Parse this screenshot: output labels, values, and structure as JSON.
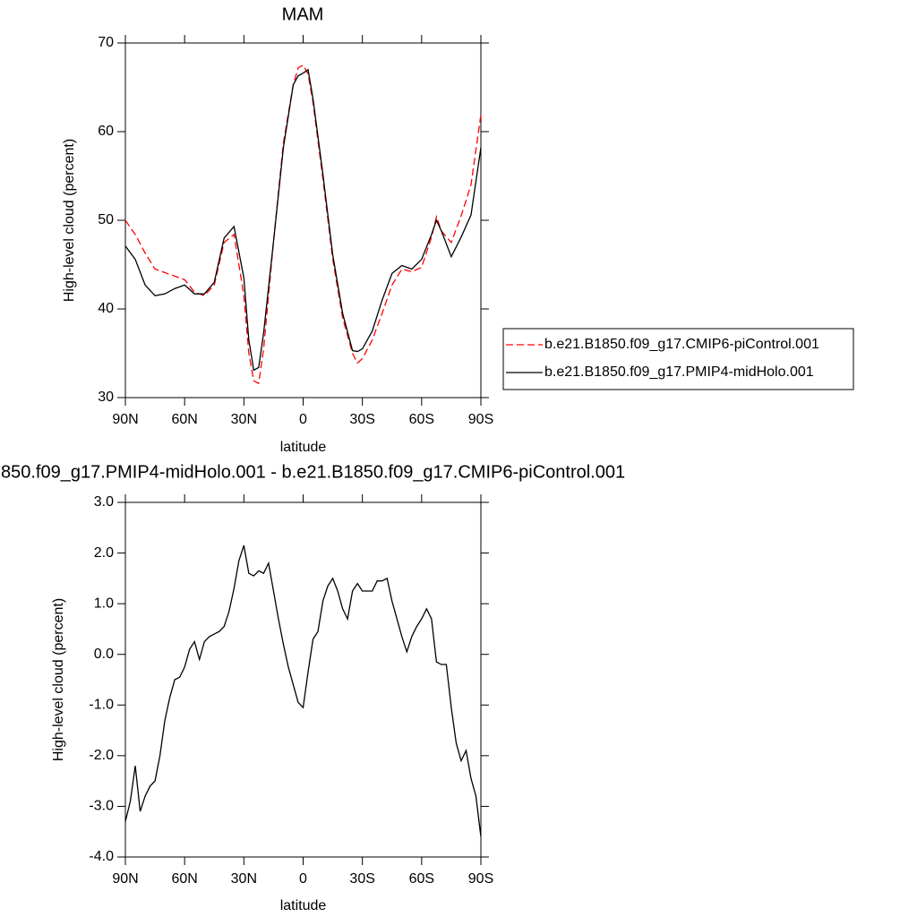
{
  "chart_data": [
    {
      "type": "line",
      "title": "MAM",
      "xlabel": "latitude",
      "ylabel": "High-level cloud (percent)",
      "x": [
        90,
        85,
        80,
        75,
        70,
        65,
        60,
        55,
        50,
        45,
        40,
        35,
        30,
        27.5,
        25,
        22.5,
        20,
        15,
        10,
        5,
        2.5,
        0,
        -2.5,
        -5,
        -10,
        -15,
        -20,
        -25,
        -27.5,
        -30,
        -35,
        -40,
        -45,
        -50,
        -55,
        -60,
        -65,
        -67.5,
        -70,
        -75,
        -80,
        -85,
        -90
      ],
      "xlim": [
        90,
        -90
      ],
      "xticks": [
        {
          "value": 90,
          "label": "90N"
        },
        {
          "value": 60,
          "label": "60N"
        },
        {
          "value": 30,
          "label": "30N"
        },
        0,
        {
          "value": -30,
          "label": "30S"
        },
        {
          "value": -60,
          "label": "60S"
        },
        {
          "value": -90,
          "label": "90S"
        }
      ],
      "ylim": [
        30,
        70
      ],
      "yticks": [
        30,
        40,
        50,
        60,
        70
      ],
      "legend": "right",
      "series": [
        {
          "name": "b.e21.B1850.f09_g17.CMIP6-piControl.001",
          "color": "#ff0000",
          "style": "dashed",
          "values": [
            50.0,
            48.4,
            46.3,
            44.5,
            44.1,
            43.7,
            43.3,
            41.9,
            41.5,
            42.7,
            47.5,
            48.4,
            41.5,
            35.0,
            31.9,
            31.6,
            35.5,
            47.6,
            58.7,
            65.3,
            67.2,
            67.5,
            66.5,
            63.3,
            54.7,
            45.6,
            39.0,
            35.0,
            33.9,
            34.4,
            36.5,
            39.5,
            42.7,
            44.5,
            44.2,
            44.7,
            48.1,
            50.4,
            48.8,
            47.5,
            50.5,
            54.0,
            61.9
          ]
        },
        {
          "name": "b.e21.B1850.f09_g17.PMIP4-midHolo.001",
          "color": "#000000",
          "style": "solid",
          "values": [
            47.1,
            45.6,
            42.7,
            41.5,
            41.7,
            42.3,
            42.7,
            41.7,
            41.7,
            43.0,
            48.0,
            49.3,
            43.5,
            36.5,
            33.1,
            33.4,
            37.3,
            47.6,
            58.2,
            65.3,
            66.3,
            66.6,
            67.0,
            63.7,
            55.2,
            46.1,
            39.5,
            35.3,
            35.2,
            35.5,
            37.5,
            41.0,
            44.0,
            44.9,
            44.5,
            45.6,
            48.4,
            50.0,
            48.8,
            45.9,
            48.1,
            50.6,
            58.2
          ]
        }
      ]
    },
    {
      "type": "line",
      "title": "850.f09_g17.PMIP4-midHolo.001 - b.e21.B1850.f09_g17.CMIP6-piControl.001",
      "xlabel": "latitude",
      "ylabel": "High-level cloud (percent)",
      "x": [
        90,
        87.5,
        85,
        82.5,
        80,
        77.5,
        75,
        72.5,
        70,
        67.5,
        65,
        62.5,
        60,
        57.5,
        55,
        52.5,
        50,
        47.5,
        45,
        42.5,
        40,
        37.5,
        35,
        32.5,
        30,
        27.5,
        25,
        22.5,
        20,
        17.5,
        15,
        12.5,
        10,
        7.5,
        5,
        2.5,
        0,
        -2.5,
        -5,
        -7.5,
        -10,
        -12.5,
        -15,
        -17.5,
        -20,
        -22.5,
        -25,
        -27.5,
        -30,
        -32.5,
        -35,
        -37.5,
        -40,
        -42.5,
        -45,
        -47.5,
        -50,
        -52.5,
        -55,
        -57.5,
        -60,
        -62.5,
        -65,
        -67.5,
        -70,
        -72.5,
        -75,
        -77.5,
        -80,
        -82.5,
        -85,
        -87.5,
        -90
      ],
      "xlim": [
        90,
        -90
      ],
      "xticks": [
        {
          "value": 90,
          "label": "90N"
        },
        {
          "value": 60,
          "label": "60N"
        },
        {
          "value": 30,
          "label": "30N"
        },
        0,
        {
          "value": -30,
          "label": "30S"
        },
        {
          "value": -60,
          "label": "60S"
        },
        {
          "value": -90,
          "label": "90S"
        }
      ],
      "ylim": [
        -4,
        3
      ],
      "yticks": [
        {
          "value": -4,
          "label": "-4.0"
        },
        {
          "value": -3,
          "label": "-3.0"
        },
        {
          "value": -2,
          "label": "-2.0"
        },
        {
          "value": -1,
          "label": "-1.0"
        },
        {
          "value": 0,
          "label": "0.0"
        },
        {
          "value": 1,
          "label": "1.0"
        },
        {
          "value": 2,
          "label": "2.0"
        },
        {
          "value": 3,
          "label": "3.0"
        }
      ],
      "color": "#000000",
      "values": [
        -3.3,
        -2.9,
        -2.2,
        -3.1,
        -2.8,
        -2.6,
        -2.5,
        -2.0,
        -1.3,
        -0.85,
        -0.5,
        -0.45,
        -0.25,
        0.1,
        0.25,
        -0.1,
        0.25,
        0.35,
        0.4,
        0.45,
        0.55,
        0.85,
        1.3,
        1.85,
        2.15,
        1.6,
        1.55,
        1.65,
        1.6,
        1.8,
        1.25,
        0.7,
        0.2,
        -0.25,
        -0.6,
        -0.95,
        -1.05,
        -0.35,
        0.3,
        0.45,
        1.05,
        1.35,
        1.5,
        1.25,
        0.9,
        0.7,
        1.25,
        1.4,
        1.25,
        1.25,
        1.25,
        1.45,
        1.45,
        1.5,
        1.05,
        0.7,
        0.35,
        0.05,
        0.35,
        0.55,
        0.7,
        0.9,
        0.7,
        -0.15,
        -0.2,
        -0.2,
        -1.05,
        -1.75,
        -2.1,
        -1.9,
        -2.45,
        -2.8,
        -3.6
      ]
    }
  ]
}
